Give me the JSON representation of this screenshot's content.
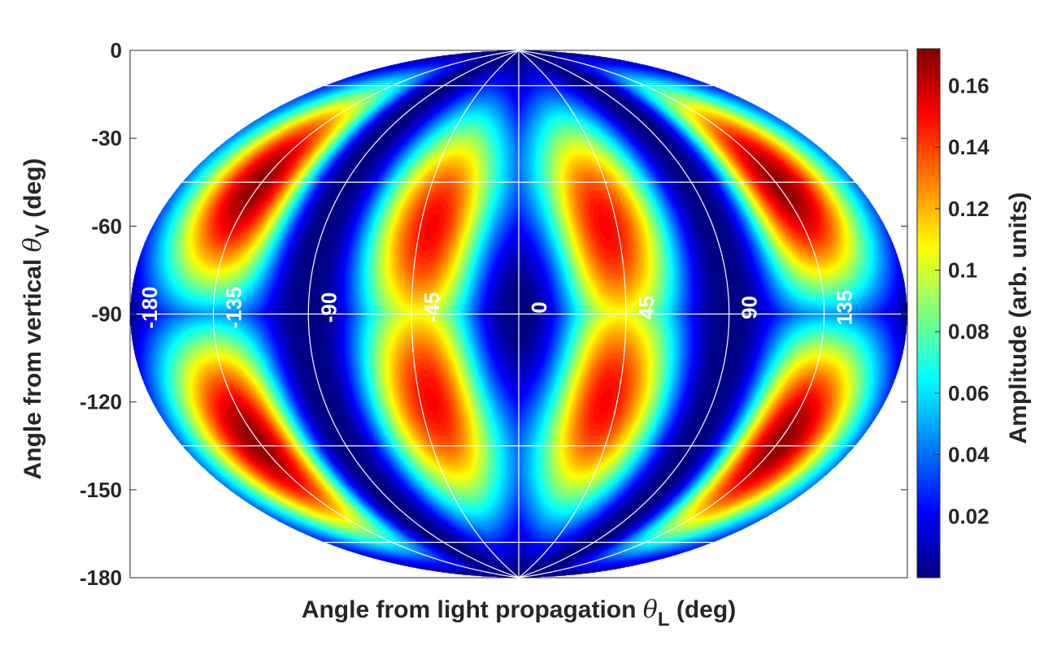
{
  "chart_data": {
    "type": "heatmap",
    "projection": "hammer-aitoff",
    "colormap": "jet",
    "xlabel": {
      "text": "Angle from light propagation ",
      "symbol": "θ",
      "subscript": "L",
      "suffix": " (deg)"
    },
    "ylabel": {
      "text": "Angle from vertical ",
      "symbol": "θ",
      "subscript": "V",
      "suffix": " (deg)"
    },
    "colorbar": {
      "label": "Amplitude (arb. units)",
      "min": 0.0,
      "max": 0.172,
      "ticks": [
        0.02,
        0.04,
        0.06,
        0.08,
        0.1,
        0.12,
        0.14,
        0.16
      ],
      "tick_labels": [
        "0.02",
        "0.04",
        "0.06",
        "0.08",
        "0.1",
        "0.12",
        "0.14",
        "0.16"
      ]
    },
    "y_ticks": [
      0,
      -30,
      -60,
      -90,
      -120,
      -150,
      -180
    ],
    "y_tick_labels": [
      "0",
      "-30",
      "-60",
      "-90",
      "-120",
      "-150",
      "-180"
    ],
    "ylim": [
      -180,
      0
    ],
    "x_range": [
      -180,
      180
    ],
    "meridian_labels": [
      {
        "value": -180,
        "text": "-180"
      },
      {
        "value": -135,
        "text": "-135"
      },
      {
        "value": -90,
        "text": "-90"
      },
      {
        "value": -45,
        "text": "-45"
      },
      {
        "value": 0,
        "text": "0"
      },
      {
        "value": 45,
        "text": "45"
      },
      {
        "value": 90,
        "text": "90"
      },
      {
        "value": 135,
        "text": "135"
      }
    ],
    "grid": true,
    "grid_color": "#ffffff",
    "meridians": [
      -180,
      -135,
      -90,
      -45,
      0,
      45,
      90,
      135,
      180
    ],
    "parallels": [
      -30,
      -60,
      -90,
      -120,
      -150
    ],
    "field_model": {
      "description_units": "amplitude vs. thetaL (deg) and thetaV (deg)",
      "max_amplitude": 0.172,
      "peaks": [
        {
          "thetaL": -135,
          "thetaV": -60
        },
        {
          "thetaL": -135,
          "thetaV": -120
        },
        {
          "thetaL": -30,
          "thetaV": -60
        },
        {
          "thetaL": 30,
          "thetaV": -60
        },
        {
          "thetaL": -30,
          "thetaV": -120
        },
        {
          "thetaL": 30,
          "thetaV": -120
        },
        {
          "thetaL": 135,
          "thetaV": -60
        },
        {
          "thetaL": 135,
          "thetaV": -120
        }
      ],
      "minima_meridians": [
        -90,
        90
      ],
      "minimum_center": {
        "thetaL": 0,
        "thetaV": -90
      }
    }
  }
}
